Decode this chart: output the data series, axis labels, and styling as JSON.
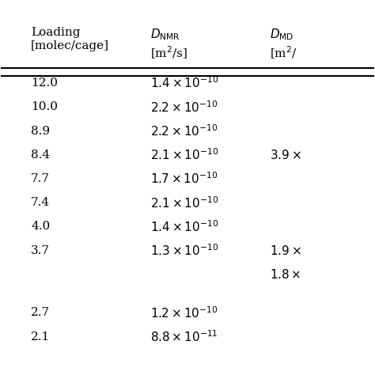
{
  "col_headers": [
    "Loading\n[molec/cage]",
    "$D_{\\mathrm{NMR}}$\n[m$^2$/s]",
    "$D_{\\mathrm{MD}}$\n[m$^2$/"
  ],
  "col_header_labels": [
    "Loading\n[molec/cage]",
    "$D_\\mathregular{NMR}$\n[$\\mathregular{m}^2$/s]",
    "$D_\\mathregular{MD}$\n[$\\mathregular{m}^2$/"
  ],
  "rows": [
    [
      "12.0",
      "$1.4 \\times 10^{-10}$",
      ""
    ],
    [
      "10.0",
      "$2.2 \\times 10^{-10}$",
      ""
    ],
    [
      "8.9",
      "$2.2 \\times 10^{-10}$",
      ""
    ],
    [
      "8.4",
      "$2.1 \\times 10^{-10}$",
      "$3.9 \\times$"
    ],
    [
      "7.7",
      "$1.7 \\times 10^{-10}$",
      ""
    ],
    [
      "7.4",
      "$2.1 \\times 10^{-10}$",
      ""
    ],
    [
      "4.0",
      "$1.4 \\times 10^{-10}$",
      ""
    ],
    [
      "3.7",
      "$1.3 \\times 10^{-10}$",
      "$1.9 \\times$"
    ],
    [
      "",
      "",
      "$1.8 \\times$"
    ],
    [
      "2.7",
      "$1.2 \\times 10^{-10}$",
      ""
    ],
    [
      "2.1",
      "$8.8 \\times 10^{-11}$",
      ""
    ]
  ],
  "background_color": "#ffffff",
  "text_color": "#000000",
  "header_line_color": "#000000",
  "font_size": 11,
  "header_font_size": 11
}
